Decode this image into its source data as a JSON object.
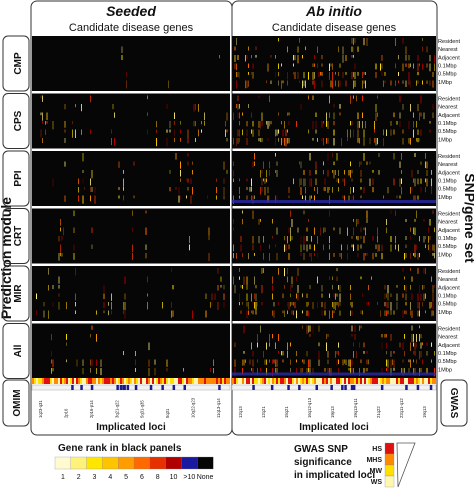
{
  "chart_data": {
    "type": "heatmap",
    "columns": [
      {
        "title": "Seeded",
        "subtitle": "Candidate disease genes"
      },
      {
        "title": "Ab initio",
        "subtitle": "Candidate disease genes"
      }
    ],
    "y_axis_label": "Prediction module",
    "right_axis_label": "SNP/gene set",
    "modules": [
      "CMP",
      "CPS",
      "PPI",
      "CRT",
      "MIR",
      "All"
    ],
    "snp_gene_sets": [
      "Resident",
      "Nearest",
      "Adjacent",
      "0.1Mbp",
      "0.5Mbp",
      "1Mbp"
    ],
    "bottom_left_label": "OMIM",
    "bottom_right_label": "GWAS",
    "x_axis_label": "Implicated loci",
    "locus_ticks": [
      "1q23-q31",
      "2p16",
      "2p16-p14",
      "3q21-q22",
      "5q31-q35",
      "5q31",
      "10q22-q23",
      "11q13-q14",
      "12q13",
      "12q21",
      "15q21",
      "16q12-q13",
      "19p13",
      "19q13-q11",
      "21q22",
      "22q11-q12",
      "19q13"
    ],
    "rank_legend": {
      "title": "Gene rank in black panels",
      "labels": [
        "1",
        "2",
        "3",
        "4",
        "5",
        "6",
        "8",
        "10",
        ">10",
        "None"
      ],
      "colors": [
        "#fffbd0",
        "#fff27a",
        "#ffe600",
        "#ffc400",
        "#ff9d00",
        "#ff6a00",
        "#e53000",
        "#b00000",
        "#1a1aa0",
        "#050505"
      ]
    },
    "gwas_legend": {
      "title_lines": [
        "GWAS SNP",
        "significance",
        "in implicated loci"
      ],
      "levels": [
        "HS",
        "MHS",
        "MW",
        "WS"
      ],
      "colors": [
        "#e01010",
        "#ff8a00",
        "#ffe000",
        "#fff7b0"
      ]
    }
  }
}
